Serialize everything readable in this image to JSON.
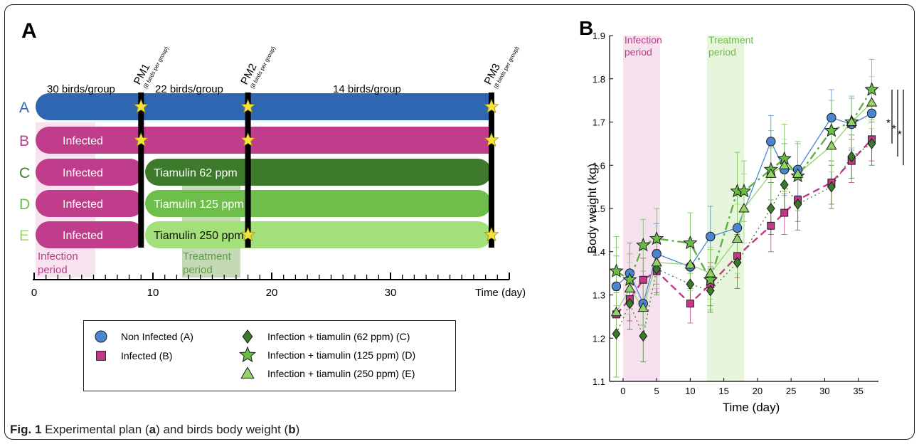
{
  "panel_a": {
    "label": "A",
    "top_labels": {
      "g30": "30 birds/group",
      "g22": "22 birds/group",
      "g14": "14 birds/group"
    },
    "pm": [
      {
        "name": "PM1",
        "note": "(8 birds per group)",
        "day": 9
      },
      {
        "name": "PM2",
        "note": "(8 birds per group)",
        "day": 18
      },
      {
        "name": "PM3",
        "note": "(8 birds per group)",
        "day": 38.5
      }
    ],
    "rows": [
      {
        "letter": "A",
        "letter_color": "#2e66b1",
        "color": "#2e66b1",
        "infected": "",
        "treatment": "",
        "treatment_color": "#2e66b1"
      },
      {
        "letter": "B",
        "letter_color": "#bf3d8a",
        "color": "#bf3d8a",
        "infected": "Infected",
        "treatment": "",
        "treatment_color": "#bf3d8a"
      },
      {
        "letter": "C",
        "letter_color": "#3d7a2b",
        "color": "#3d7a2b",
        "infected": "Infected",
        "treatment": "Tiamulin 62 ppm",
        "treatment_color": "#3d7a2b"
      },
      {
        "letter": "D",
        "letter_color": "#6dbe4b",
        "color": "#6dbe4b",
        "infected": "Infected",
        "treatment": "Tiamulin 125 ppm",
        "treatment_color": "#6dbe4b"
      },
      {
        "letter": "E",
        "letter_color": "#9cd86c",
        "color": "#a3e07a",
        "infected": "Infected",
        "treatment": "Tiamulin 250 ppm",
        "treatment_color": "#a3e07a"
      }
    ],
    "shade_labels": {
      "infection": "Infection period",
      "infection_l1": "Infection",
      "infection_l2": "period",
      "treatment_l1": "Treatment",
      "treatment_l2": "period"
    },
    "timeline": {
      "ticks": [
        "0",
        "10",
        "20",
        "30"
      ],
      "end_label": "Time (day)"
    }
  },
  "legend": [
    {
      "label": "Non Infected (A)",
      "marker": "circle",
      "color": "#4a86d0"
    },
    {
      "label": "Infected (B)",
      "marker": "square",
      "color": "#c13a8a"
    },
    {
      "label": "Infection + tiamulin (62 ppm) (C)",
      "marker": "diamond",
      "color": "#3b7a2a"
    },
    {
      "label": "Infection + tiamulin (125 ppm) (D)",
      "marker": "star",
      "color": "#69bd45"
    },
    {
      "label": "Infection + tiamulin (250 ppm) (E)",
      "marker": "triangle",
      "color": "#93d469"
    }
  ],
  "chart_data": {
    "type": "line",
    "panel_label": "B",
    "xlabel": "Time (day)",
    "ylabel": "Body weight (kg)",
    "xlim": [
      -2,
      38
    ],
    "ylim": [
      1.1,
      1.9
    ],
    "xticks": [
      0,
      5,
      10,
      15,
      20,
      25,
      30,
      35
    ],
    "yticks": [
      1.1,
      1.2,
      1.3,
      1.4,
      1.5,
      1.6,
      1.7,
      1.8,
      1.9
    ],
    "shaded_periods": [
      {
        "label_l1": "Infection",
        "label_l2": "period",
        "x": [
          0,
          5.5
        ],
        "color": "#f5e1ee",
        "text_color": "#c13a8a"
      },
      {
        "label_l1": "Treatment",
        "label_l2": "period",
        "x": [
          12.5,
          18
        ],
        "color": "#e8f5dd",
        "text_color": "#69bd45"
      }
    ],
    "significance_marks": [
      "*",
      "*",
      "*"
    ],
    "series": [
      {
        "name": "Non Infected (A)",
        "marker": "circle",
        "color": "#4a86d0",
        "line_color": "#4a86d0",
        "dash": "",
        "x": [
          -1,
          1,
          3,
          5,
          10,
          13,
          17,
          22,
          24,
          26,
          31,
          34,
          37
        ],
        "y": [
          1.32,
          1.35,
          1.28,
          1.395,
          1.365,
          1.435,
          1.455,
          1.655,
          1.59,
          1.59,
          1.71,
          1.695,
          1.72
        ],
        "err": [
          0.07,
          0.07,
          0.05,
          0.07,
          0.05,
          0.07,
          0.08,
          0.06,
          0.06,
          0.06,
          0.065,
          0.06,
          0.06
        ]
      },
      {
        "name": "Infected (B)",
        "marker": "square",
        "color": "#c13a8a",
        "line_color": "#c13a8a",
        "dash": "10,6",
        "x": [
          -1,
          1,
          3,
          5,
          10,
          13,
          17,
          22,
          24,
          26,
          31,
          34,
          37
        ],
        "y": [
          1.255,
          1.29,
          1.335,
          1.355,
          1.28,
          1.325,
          1.39,
          1.46,
          1.49,
          1.52,
          1.56,
          1.61,
          1.66
        ],
        "err": [
          0.05,
          0.05,
          0.05,
          0.05,
          0.045,
          0.05,
          0.05,
          0.06,
          0.05,
          0.05,
          0.05,
          0.05,
          0.05
        ]
      },
      {
        "name": "Infection + tiamulin (62 ppm) (C)",
        "marker": "diamond",
        "color": "#3b7a2a",
        "line_color": "#3b7a2a",
        "dash": "2,4",
        "x": [
          -1,
          1,
          3,
          5,
          10,
          13,
          17,
          22,
          24,
          26,
          31,
          34,
          37
        ],
        "y": [
          1.21,
          1.28,
          1.205,
          1.36,
          1.325,
          1.31,
          1.375,
          1.5,
          1.555,
          1.51,
          1.55,
          1.62,
          1.65
        ],
        "err": [
          0.1,
          0.06,
          0.06,
          0.06,
          0.05,
          0.05,
          0.06,
          0.06,
          0.06,
          0.06,
          0.05,
          0.05,
          0.05
        ]
      },
      {
        "name": "Infection + tiamulin (125 ppm) (D)",
        "marker": "star",
        "color": "#69bd45",
        "line_color": "#5fb043",
        "dash": "12,5,3,5",
        "x": [
          -1,
          1,
          3,
          5,
          10,
          13,
          17,
          18,
          22,
          24,
          26,
          31,
          34,
          37
        ],
        "y": [
          1.355,
          1.335,
          1.415,
          1.43,
          1.42,
          1.335,
          1.54,
          1.54,
          1.59,
          1.615,
          1.575,
          1.68,
          1.7,
          1.775
        ],
        "err": [
          0.08,
          0.06,
          0.06,
          0.07,
          0.07,
          0.07,
          0.09,
          0.07,
          0.09,
          0.08,
          0.08,
          0.07,
          0.06,
          0.07
        ]
      },
      {
        "name": "Infection + tiamulin (250 ppm) (E)",
        "marker": "triangle",
        "color": "#93d469",
        "line_color": "#93d469",
        "dash": "",
        "x": [
          -1,
          1,
          3,
          5,
          10,
          13,
          17,
          18,
          22,
          24,
          26,
          31,
          34,
          37
        ],
        "y": [
          1.26,
          1.315,
          1.27,
          1.375,
          1.37,
          1.35,
          1.43,
          1.5,
          1.58,
          1.6,
          1.58,
          1.645,
          1.7,
          1.745
        ],
        "err": [
          0.15,
          0.06,
          0.06,
          0.06,
          0.06,
          0.06,
          0.08,
          0.08,
          0.06,
          0.06,
          0.07,
          0.06,
          0.06,
          0.06
        ]
      }
    ]
  },
  "caption": {
    "prefix": "Fig. 1",
    "text_1": " Experimental plan (",
    "a": "a",
    "text_2": ") and birds body weight (",
    "b": "b",
    "text_3": ")"
  }
}
